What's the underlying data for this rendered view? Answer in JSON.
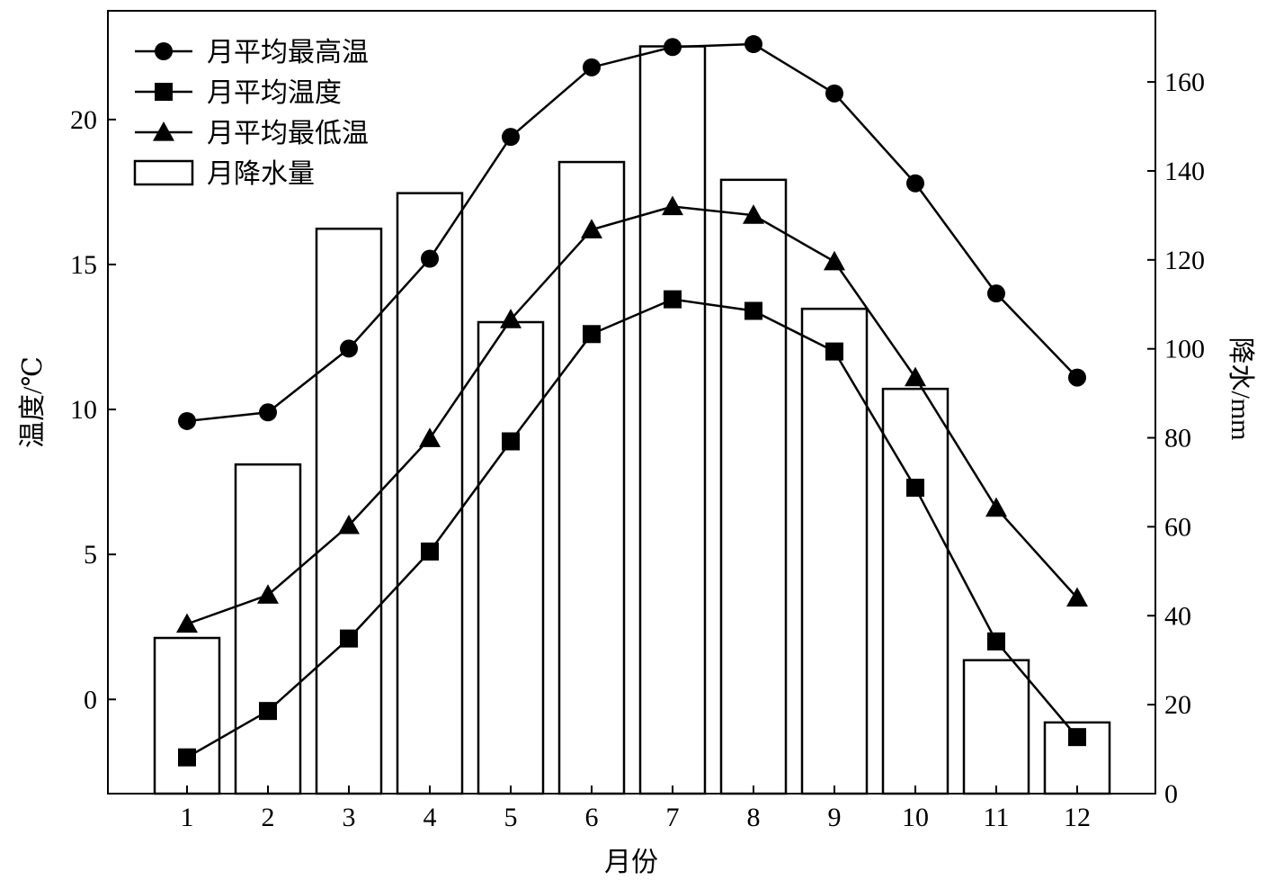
{
  "chart_data": {
    "type": "bar+line",
    "categories": [
      "1",
      "2",
      "3",
      "4",
      "5",
      "6",
      "7",
      "8",
      "9",
      "10",
      "11",
      "12"
    ],
    "xlabel": "月份",
    "ylabel_left": "温度/℃",
    "ylabel_right": "降水/mm",
    "ylim_left": [
      -3.25,
      23.75
    ],
    "ylim_right": [
      0,
      176
    ],
    "yticks_left": [
      0,
      5,
      10,
      15,
      20
    ],
    "yticks_right": [
      0,
      20,
      40,
      60,
      80,
      100,
      120,
      140,
      160
    ],
    "legend_position": "top-left",
    "grid": false,
    "series": [
      {
        "name": "月平均最高温",
        "kind": "line",
        "marker": "circle",
        "axis": "left",
        "values": [
          9.6,
          9.9,
          12.1,
          15.2,
          19.4,
          21.8,
          22.5,
          22.6,
          20.9,
          17.8,
          14.0,
          11.1
        ]
      },
      {
        "name": "月平均温度",
        "kind": "line",
        "marker": "square",
        "axis": "left",
        "values": [
          -2.0,
          -0.4,
          2.1,
          5.1,
          8.9,
          12.6,
          13.8,
          13.4,
          12.0,
          7.3,
          2.0,
          -1.3
        ]
      },
      {
        "name": "月平均最低温",
        "kind": "line",
        "marker": "triangle",
        "axis": "left",
        "values": [
          2.6,
          3.6,
          6.0,
          9.0,
          13.1,
          16.2,
          17.0,
          16.7,
          15.1,
          11.1,
          6.6,
          3.5
        ]
      },
      {
        "name": "月降水量",
        "kind": "bar",
        "axis": "right",
        "values": [
          35,
          74,
          127,
          135,
          106,
          142,
          168,
          138,
          109,
          91,
          30,
          16
        ]
      }
    ],
    "colors": {
      "line": "#000000",
      "bar_fill": "#ffffff",
      "bar_stroke": "#000000"
    }
  }
}
